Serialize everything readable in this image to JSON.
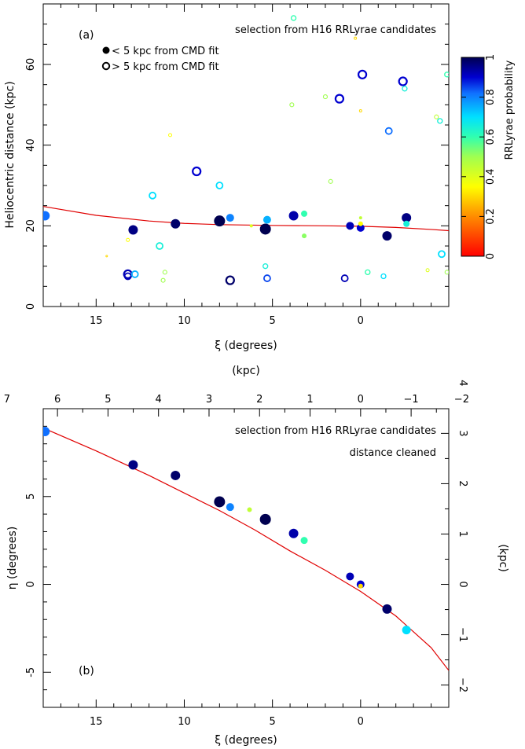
{
  "chart_data": [
    {
      "type": "scatter",
      "panel_label": "(a)",
      "annotation": "selection from H16 RRLyrae candidates",
      "legend": [
        {
          "marker": "filled",
          "label": "< 5 kpc from CMD fit"
        },
        {
          "marker": "open",
          "label": "> 5 kpc from CMD fit"
        }
      ],
      "xlabel": "ξ (degrees)",
      "ylabel": "Heliocentric distance (kpc)",
      "xlim": [
        18,
        -5
      ],
      "ylim": [
        0,
        75
      ],
      "xticks": [
        15,
        10,
        5,
        0
      ],
      "yticks": [
        0,
        20,
        40,
        60
      ],
      "colorbar": {
        "label": "RRLyrae probability",
        "ticks": [
          0,
          0.2,
          0.4,
          0.6,
          0.8,
          1
        ],
        "range": [
          0,
          1
        ]
      },
      "fit_curve": [
        [
          18,
          24.8
        ],
        [
          15,
          22.6
        ],
        [
          12,
          21.2
        ],
        [
          10,
          20.6
        ],
        [
          8,
          20.3
        ],
        [
          5,
          20.1
        ],
        [
          2,
          20.0
        ],
        [
          0,
          19.9
        ],
        [
          -2,
          19.6
        ],
        [
          -4,
          19.1
        ],
        [
          -5,
          18.8
        ]
      ],
      "points": [
        {
          "xi": 17.9,
          "d": 22.5,
          "p": 0.82,
          "filled": true,
          "size": 6
        },
        {
          "xi": 12.9,
          "d": 19.0,
          "p": 0.96,
          "filled": true,
          "size": 6
        },
        {
          "xi": 10.5,
          "d": 20.5,
          "p": 0.98,
          "filled": true,
          "size": 6
        },
        {
          "xi": 8.0,
          "d": 21.2,
          "p": 1.0,
          "filled": true,
          "size": 7
        },
        {
          "xi": 7.4,
          "d": 22.0,
          "p": 0.8,
          "filled": true,
          "size": 5
        },
        {
          "xi": 5.4,
          "d": 19.2,
          "p": 1.0,
          "filled": true,
          "size": 7
        },
        {
          "xi": 5.3,
          "d": 21.5,
          "p": 0.75,
          "filled": true,
          "size": 5
        },
        {
          "xi": 3.8,
          "d": 22.5,
          "p": 0.93,
          "filled": true,
          "size": 6
        },
        {
          "xi": 3.2,
          "d": 23.0,
          "p": 0.6,
          "filled": true,
          "size": 4
        },
        {
          "xi": 3.2,
          "d": 17.5,
          "p": 0.52,
          "filled": true,
          "size": 3
        },
        {
          "xi": 0.6,
          "d": 20.0,
          "p": 0.92,
          "filled": true,
          "size": 5
        },
        {
          "xi": 0.0,
          "d": 19.5,
          "p": 0.9,
          "filled": true,
          "size": 5
        },
        {
          "xi": 0.0,
          "d": 20.5,
          "p": 0.35,
          "filled": true,
          "size": 3
        },
        {
          "xi": 0.0,
          "d": 22.0,
          "p": 0.45,
          "filled": true,
          "size": 2
        },
        {
          "xi": -1.5,
          "d": 17.5,
          "p": 0.98,
          "filled": true,
          "size": 6
        },
        {
          "xi": -2.6,
          "d": 22.0,
          "p": 0.96,
          "filled": true,
          "size": 6
        },
        {
          "xi": -2.6,
          "d": 20.5,
          "p": 0.65,
          "filled": true,
          "size": 4
        },
        {
          "xi": 6.2,
          "d": 20.0,
          "p": 0.4,
          "filled": true,
          "size": 2
        },
        {
          "xi": 3.8,
          "d": 71.5,
          "p": 0.6,
          "filled": false,
          "size": 3
        },
        {
          "xi": 0.3,
          "d": 66.5,
          "p": 0.3,
          "filled": false,
          "size": 1.5
        },
        {
          "xi": -0.1,
          "d": 57.5,
          "p": 0.9,
          "filled": false,
          "size": 5
        },
        {
          "xi": -2.4,
          "d": 55.8,
          "p": 0.9,
          "filled": false,
          "size": 5
        },
        {
          "xi": -2.5,
          "d": 54.0,
          "p": 0.65,
          "filled": false,
          "size": 3
        },
        {
          "xi": -4.9,
          "d": 57.5,
          "p": 0.6,
          "filled": false,
          "size": 3
        },
        {
          "xi": 1.2,
          "d": 51.5,
          "p": 0.9,
          "filled": false,
          "size": 5
        },
        {
          "xi": 2.0,
          "d": 52.0,
          "p": 0.5,
          "filled": false,
          "size": 2.5
        },
        {
          "xi": 3.9,
          "d": 50.0,
          "p": 0.5,
          "filled": false,
          "size": 2.5
        },
        {
          "xi": 0.0,
          "d": 48.5,
          "p": 0.3,
          "filled": false,
          "size": 1.5
        },
        {
          "xi": -4.3,
          "d": 47.0,
          "p": 0.45,
          "filled": false,
          "size": 2.5
        },
        {
          "xi": -4.5,
          "d": 46.0,
          "p": 0.65,
          "filled": false,
          "size": 3
        },
        {
          "xi": -1.6,
          "d": 43.5,
          "p": 0.82,
          "filled": false,
          "size": 4
        },
        {
          "xi": 10.8,
          "d": 42.5,
          "p": 0.35,
          "filled": false,
          "size": 2
        },
        {
          "xi": 9.3,
          "d": 33.5,
          "p": 0.9,
          "filled": false,
          "size": 5
        },
        {
          "xi": 8.0,
          "d": 30.0,
          "p": 0.7,
          "filled": false,
          "size": 4
        },
        {
          "xi": 1.7,
          "d": 31.0,
          "p": 0.5,
          "filled": false,
          "size": 2.5
        },
        {
          "xi": 11.8,
          "d": 27.5,
          "p": 0.7,
          "filled": false,
          "size": 4
        },
        {
          "xi": 13.2,
          "d": 16.5,
          "p": 0.35,
          "filled": false,
          "size": 2
        },
        {
          "xi": 11.4,
          "d": 15.0,
          "p": 0.65,
          "filled": false,
          "size": 4
        },
        {
          "xi": 14.4,
          "d": 12.5,
          "p": 0.3,
          "filled": false,
          "size": 1
        },
        {
          "xi": -4.6,
          "d": 13.0,
          "p": 0.7,
          "filled": false,
          "size": 4
        },
        {
          "xi": 5.4,
          "d": 10.0,
          "p": 0.65,
          "filled": false,
          "size": 3
        },
        {
          "xi": 11.1,
          "d": 8.5,
          "p": 0.5,
          "filled": false,
          "size": 2.5
        },
        {
          "xi": 11.2,
          "d": 6.5,
          "p": 0.5,
          "filled": false,
          "size": 2.5
        },
        {
          "xi": 13.2,
          "d": 8.0,
          "p": 0.92,
          "filled": false,
          "size": 5
        },
        {
          "xi": 13.2,
          "d": 7.5,
          "p": 0.92,
          "filled": false,
          "size": 4
        },
        {
          "xi": 12.8,
          "d": 8.0,
          "p": 0.75,
          "filled": false,
          "size": 4
        },
        {
          "xi": 7.4,
          "d": 6.5,
          "p": 0.98,
          "filled": false,
          "size": 5
        },
        {
          "xi": 5.3,
          "d": 7.0,
          "p": 0.85,
          "filled": false,
          "size": 4
        },
        {
          "xi": 0.9,
          "d": 7.0,
          "p": 0.92,
          "filled": false,
          "size": 4
        },
        {
          "xi": -0.4,
          "d": 8.5,
          "p": 0.6,
          "filled": false,
          "size": 3
        },
        {
          "xi": -1.3,
          "d": 7.5,
          "p": 0.7,
          "filled": false,
          "size": 3
        },
        {
          "xi": -3.8,
          "d": 9.0,
          "p": 0.4,
          "filled": false,
          "size": 2
        },
        {
          "xi": -4.9,
          "d": 8.5,
          "p": 0.5,
          "filled": false,
          "size": 2.5
        }
      ]
    },
    {
      "type": "scatter",
      "panel_label": "(b)",
      "annotation_lines": [
        "selection from H16 RRLyrae candidates",
        "distance cleaned"
      ],
      "xlabel": "ξ (degrees)",
      "ylabel": "η (degrees)",
      "top_axis_label": "(kpc)",
      "right_axis_label": "(kpc)",
      "xlim": [
        18,
        -5
      ],
      "ylim": [
        -7,
        10
      ],
      "xticks": [
        15,
        10,
        5,
        0
      ],
      "yticks": [
        -5,
        0,
        5
      ],
      "top_ticks": [
        7,
        6,
        5,
        4,
        3,
        2,
        1,
        0,
        -1,
        -2
      ],
      "right_ticks": [
        -2,
        -1,
        0,
        1,
        2,
        3,
        4
      ],
      "kpc_per_degree": 0.349,
      "fit_curve": [
        [
          18,
          8.9
        ],
        [
          15,
          7.6
        ],
        [
          12,
          6.2
        ],
        [
          10,
          5.2
        ],
        [
          8,
          4.2
        ],
        [
          6,
          3.1
        ],
        [
          4,
          1.9
        ],
        [
          2,
          0.8
        ],
        [
          0,
          -0.4
        ],
        [
          -2,
          -1.8
        ],
        [
          -4,
          -3.6
        ],
        [
          -5,
          -4.9
        ]
      ],
      "points": [
        {
          "xi": 17.9,
          "eta": 8.7,
          "p": 0.82,
          "size": 6
        },
        {
          "xi": 12.9,
          "eta": 6.8,
          "p": 0.96,
          "size": 6
        },
        {
          "xi": 10.5,
          "eta": 6.2,
          "p": 0.98,
          "size": 6
        },
        {
          "xi": 8.0,
          "eta": 4.7,
          "p": 1.0,
          "size": 7
        },
        {
          "xi": 7.4,
          "eta": 4.4,
          "p": 0.8,
          "size": 5
        },
        {
          "xi": 6.3,
          "eta": 4.25,
          "p": 0.45,
          "size": 3
        },
        {
          "xi": 5.4,
          "eta": 3.7,
          "p": 1.0,
          "size": 7
        },
        {
          "xi": 3.8,
          "eta": 2.9,
          "p": 0.93,
          "size": 6
        },
        {
          "xi": 3.2,
          "eta": 2.5,
          "p": 0.6,
          "size": 4.5
        },
        {
          "xi": 0.6,
          "eta": 0.45,
          "p": 0.92,
          "size": 5
        },
        {
          "xi": 0.0,
          "eta": 0.0,
          "p": 0.9,
          "size": 5
        },
        {
          "xi": 0.0,
          "eta": -0.1,
          "p": 0.3,
          "size": 3
        },
        {
          "xi": -1.5,
          "eta": -1.4,
          "p": 0.98,
          "size": 6
        },
        {
          "xi": -2.6,
          "eta": -2.6,
          "p": 0.7,
          "size": 5.5
        }
      ]
    }
  ]
}
